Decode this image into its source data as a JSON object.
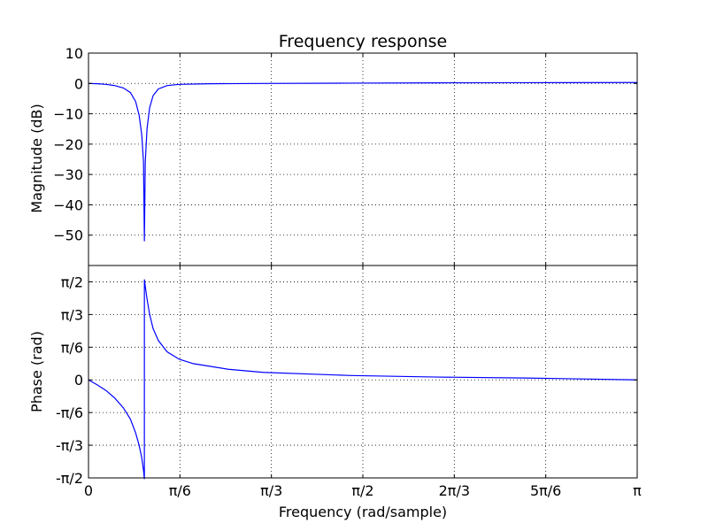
{
  "chart_data": {
    "type": "line",
    "title": "Frequency response",
    "xlabel": "Frequency (rad/sample)",
    "xlim": [
      0,
      3.14159265
    ],
    "x_ticks": [
      {
        "value": 0,
        "label": "0"
      },
      {
        "value": 0.5235988,
        "label": "π/6"
      },
      {
        "value": 1.0471976,
        "label": "π/3"
      },
      {
        "value": 1.5707963,
        "label": "π/2"
      },
      {
        "value": 2.0943951,
        "label": "2π/3"
      },
      {
        "value": 2.6179939,
        "label": "5π/6"
      },
      {
        "value": 3.1415927,
        "label": "π"
      }
    ],
    "grid": true,
    "line_color": "#0000ff",
    "panels": [
      {
        "ylabel": "Magnitude (dB)",
        "ylim": [
          -60,
          10
        ],
        "y_ticks": [
          {
            "value": 10,
            "label": "10"
          },
          {
            "value": 0,
            "label": "0"
          },
          {
            "value": -10,
            "label": "−10"
          },
          {
            "value": -20,
            "label": "−20"
          },
          {
            "value": -30,
            "label": "−30"
          },
          {
            "value": -40,
            "label": "−40"
          },
          {
            "value": -50,
            "label": "−50"
          }
        ],
        "series": [
          {
            "x": [
              0,
              0.05,
              0.1,
              0.15,
              0.2,
              0.24,
              0.27,
              0.29,
              0.305,
              0.315,
              0.32,
              0.325,
              0.335,
              0.35,
              0.37,
              0.4,
              0.45,
              0.52,
              0.7,
              1.0,
              1.5,
              2.0,
              2.5,
              3.14159
            ],
            "y": [
              0.0,
              -0.1,
              -0.3,
              -0.7,
              -1.5,
              -3.0,
              -6.0,
              -10.5,
              -17.0,
              -26.0,
              -52.0,
              -26.0,
              -15.0,
              -8.0,
              -4.0,
              -1.8,
              -0.7,
              -0.3,
              -0.1,
              0.0,
              0.1,
              0.2,
              0.25,
              0.3
            ]
          }
        ]
      },
      {
        "ylabel": "Phase (rad)",
        "ylim": [
          -1.5708,
          1.8326
        ],
        "y_ticks": [
          {
            "value": 1.5707963,
            "label": "π/2"
          },
          {
            "value": 1.0471976,
            "label": "π/3"
          },
          {
            "value": 0.5235988,
            "label": "π/6"
          },
          {
            "value": 0,
            "label": "0"
          },
          {
            "value": -0.5235988,
            "label": "-π/6"
          },
          {
            "value": -1.0471976,
            "label": "-π/3"
          },
          {
            "value": -1.5707963,
            "label": "-π/2"
          }
        ],
        "series": [
          {
            "x": [
              0,
              0.05,
              0.1,
              0.15,
              0.2,
              0.24,
              0.27,
              0.29,
              0.305,
              0.315,
              0.3199,
              0.3201,
              0.325,
              0.335,
              0.35,
              0.37,
              0.4,
              0.45,
              0.52,
              0.6,
              0.8,
              1.0,
              1.5,
              2.0,
              2.5,
              3.14159
            ],
            "y": [
              0.0,
              -0.08,
              -0.17,
              -0.29,
              -0.45,
              -0.63,
              -0.85,
              -1.05,
              -1.25,
              -1.45,
              -1.59,
              1.61,
              1.5,
              1.3,
              1.05,
              0.82,
              0.63,
              0.45,
              0.33,
              0.26,
              0.17,
              0.12,
              0.07,
              0.045,
              0.03,
              0.0
            ]
          }
        ]
      }
    ]
  }
}
